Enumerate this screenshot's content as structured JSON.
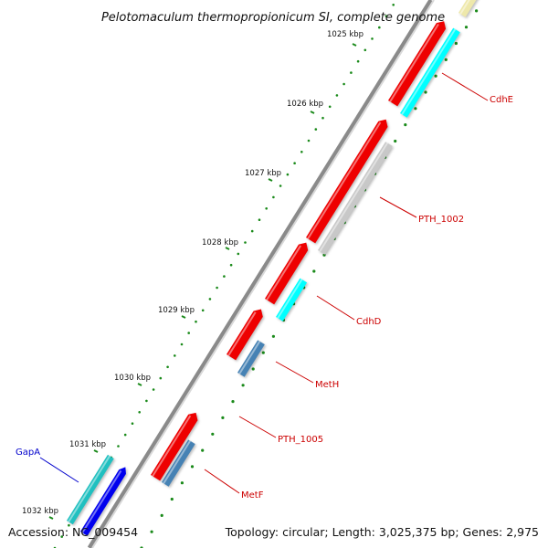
{
  "title": "Pelotomaculum thermopropionicum SI, complete genome",
  "footer": {
    "accession": "Accession: NC_009454",
    "topology": "Topology: circular; Length: 3,025,375 bp; Genes: 2,975"
  },
  "ticks": [
    "1025 kbp",
    "1026 kbp",
    "1027 kbp",
    "1028 kbp",
    "1029 kbp",
    "1030 kbp",
    "1031 kbp",
    "1032 kbp"
  ],
  "genes": [
    {
      "id": "gapa",
      "label": "GapA"
    },
    {
      "id": "cdhe",
      "label": "CdhE"
    },
    {
      "id": "pth1002",
      "label": "PTH_1002"
    },
    {
      "id": "cdhd",
      "label": "CdhD"
    },
    {
      "id": "meth",
      "label": "MetH"
    },
    {
      "id": "pth1005",
      "label": "PTH_1005"
    },
    {
      "id": "metf",
      "label": "MetF"
    }
  ],
  "colors": {
    "red_cds": "#ee0000",
    "cyan_cds": "#00ffff",
    "gray_cds": "#c8c8c8",
    "steelblue_cds": "#4682b4",
    "teal_cds": "#20c0c0",
    "blue_cds": "#0000ee",
    "khaki_cds": "#eee8aa",
    "label_red": "#cc0000",
    "label_blue": "#0000cc",
    "tick_green": "#1a8a1a"
  }
}
